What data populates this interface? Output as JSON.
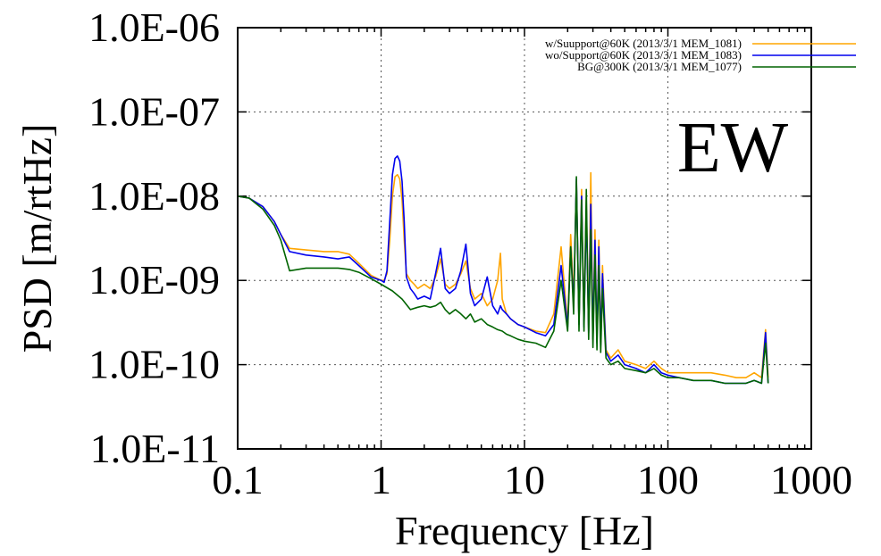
{
  "chart_data": {
    "type": "line",
    "title": "",
    "annotation": "EW",
    "xlabel": "Frequency [Hz]",
    "ylabel": "PSD [m/rtHz]",
    "xscale": "log",
    "yscale": "log",
    "xlim": [
      0.1,
      1000
    ],
    "ylim": [
      1e-11,
      1e-06
    ],
    "grid": true,
    "legend_position": "top-right",
    "x_ticks": [
      0.1,
      1,
      10,
      100,
      1000
    ],
    "x_tick_labels": [
      "0.1",
      "1",
      "10",
      "100",
      "1000"
    ],
    "y_ticks": [
      1e-11,
      1e-10,
      1e-09,
      1e-08,
      1e-07,
      1e-06
    ],
    "y_tick_labels": [
      "1.0E-11",
      "1.0E-10",
      "1.0E-09",
      "1.0E-08",
      "1.0E-07",
      "1.0E-06"
    ],
    "series": [
      {
        "name": "w/Suupport@60K (2013/3/1 MEM_1081)",
        "color": "#ffa500",
        "x": [
          0.1,
          0.12,
          0.15,
          0.18,
          0.2,
          0.23,
          0.3,
          0.4,
          0.5,
          0.6,
          0.7,
          0.85,
          1.0,
          1.05,
          1.1,
          1.15,
          1.2,
          1.25,
          1.3,
          1.35,
          1.4,
          1.45,
          1.5,
          1.6,
          1.7,
          1.8,
          2.0,
          2.2,
          2.4,
          2.6,
          2.8,
          3.0,
          3.3,
          3.6,
          3.9,
          4.2,
          4.5,
          5.0,
          5.5,
          6.0,
          6.5,
          6.8,
          7.0,
          7.5,
          8,
          9,
          10,
          12,
          14,
          16,
          18,
          20,
          21,
          22,
          23,
          24,
          25,
          26,
          27,
          28,
          29,
          30,
          31,
          32,
          33,
          34,
          35,
          37,
          40,
          45,
          50,
          60,
          70,
          80,
          90,
          100,
          120,
          150,
          200,
          250,
          300,
          350,
          400,
          450,
          480,
          500
        ],
        "y": [
          1e-08,
          9.5e-09,
          7.5e-09,
          5e-09,
          3.5e-09,
          2.4e-09,
          2.3e-09,
          2.2e-09,
          2.2e-09,
          2.05e-09,
          1.6e-09,
          1.15e-09,
          1e-09,
          1e-09,
          1.2e-09,
          3e-09,
          1e-08,
          1.7e-08,
          1.8e-08,
          1.6e-08,
          9e-09,
          3e-09,
          1.2e-09,
          1e-09,
          9e-10,
          8e-10,
          9e-10,
          8e-10,
          1.1e-09,
          1.8e-09,
          9e-10,
          8e-10,
          9e-10,
          1.2e-09,
          1.7e-09,
          8e-10,
          6e-10,
          7e-10,
          5e-10,
          6e-10,
          1e-09,
          2.1e-09,
          6e-10,
          4e-10,
          3.5e-10,
          3e-10,
          2.8e-10,
          2.5e-10,
          2.4e-10,
          4e-10,
          2.5e-09,
          3e-10,
          3.5e-09,
          6e-10,
          1.5e-08,
          3e-10,
          1.2e-08,
          3e-10,
          9e-09,
          2.5e-10,
          1.9e-08,
          2e-10,
          4e-09,
          2e-10,
          3e-09,
          1.8e-10,
          1.5e-09,
          1.5e-10,
          1.2e-10,
          1.5e-10,
          1.1e-10,
          1e-10,
          9e-11,
          1.1e-10,
          9e-11,
          8e-11,
          8e-11,
          8e-11,
          8e-11,
          7.5e-11,
          7e-11,
          7e-11,
          8e-11,
          7e-11,
          2.6e-10,
          7e-11
        ]
      },
      {
        "name": "wo/Support@60K (2013/3/1 MEM_1083)",
        "color": "#0000ee",
        "x": [
          0.1,
          0.12,
          0.15,
          0.18,
          0.2,
          0.23,
          0.3,
          0.4,
          0.5,
          0.6,
          0.7,
          0.85,
          1.0,
          1.05,
          1.1,
          1.15,
          1.2,
          1.25,
          1.3,
          1.35,
          1.4,
          1.45,
          1.5,
          1.6,
          1.7,
          1.8,
          2.0,
          2.2,
          2.4,
          2.6,
          2.8,
          3.0,
          3.3,
          3.6,
          3.9,
          4.2,
          4.5,
          5.0,
          5.5,
          6.0,
          6.5,
          6.8,
          7.0,
          7.5,
          8,
          9,
          10,
          12,
          14,
          16,
          18,
          20,
          21,
          22,
          23,
          24,
          25,
          26,
          27,
          28,
          29,
          30,
          31,
          32,
          33,
          34,
          35,
          37,
          40,
          45,
          50,
          60,
          70,
          80,
          90,
          100,
          120,
          150,
          200,
          250,
          300,
          350,
          400,
          450,
          480,
          500
        ],
        "y": [
          1e-08,
          9.5e-09,
          7.5e-09,
          5e-09,
          3.5e-09,
          2.2e-09,
          2e-09,
          1.9e-09,
          1.8e-09,
          1.9e-09,
          1.5e-09,
          1.1e-09,
          1e-09,
          9.5e-10,
          1.3e-09,
          5e-09,
          1.8e-08,
          2.8e-08,
          3e-08,
          2.6e-08,
          1.5e-08,
          5e-09,
          1.1e-09,
          8e-10,
          7e-10,
          6e-10,
          6.5e-10,
          6e-10,
          1.2e-09,
          2.4e-09,
          8e-10,
          7e-10,
          8e-10,
          1.3e-09,
          2.7e-09,
          7e-10,
          5e-10,
          6e-10,
          1.1e-09,
          5e-10,
          4e-10,
          5e-10,
          4.5e-10,
          4e-10,
          3.5e-10,
          3e-10,
          2.8e-10,
          2.4e-10,
          2.2e-10,
          3e-10,
          1.5e-09,
          2.8e-10,
          2.5e-09,
          5e-10,
          1.6e-08,
          3e-10,
          1e-08,
          2.8e-10,
          7e-09,
          2.4e-10,
          8e-09,
          2e-10,
          3e-09,
          1.8e-10,
          2.5e-09,
          1.7e-10,
          1.2e-09,
          1.4e-10,
          1.1e-10,
          1.3e-10,
          1e-10,
          9e-11,
          8e-11,
          1e-10,
          8e-11,
          7.5e-11,
          7e-11,
          6.5e-11,
          6.5e-11,
          6e-11,
          6e-11,
          6e-11,
          6.5e-11,
          6e-11,
          2.4e-10,
          6e-11
        ]
      },
      {
        "name": "BG@300K (2013/3/1 MEM_1077)",
        "color": "#006400",
        "x": [
          0.1,
          0.12,
          0.15,
          0.18,
          0.2,
          0.23,
          0.3,
          0.4,
          0.5,
          0.6,
          0.7,
          0.85,
          1.0,
          1.2,
          1.4,
          1.6,
          1.8,
          2.0,
          2.2,
          2.4,
          2.6,
          2.8,
          3.0,
          3.3,
          3.6,
          3.9,
          4.2,
          4.5,
          5.0,
          5.5,
          6.0,
          6.5,
          7.0,
          7.5,
          8,
          9,
          10,
          12,
          14,
          16,
          18,
          20,
          21,
          22,
          23,
          24,
          25,
          26,
          27,
          28,
          29,
          30,
          31,
          32,
          33,
          34,
          35,
          37,
          40,
          45,
          50,
          60,
          70,
          80,
          90,
          100,
          120,
          150,
          200,
          250,
          300,
          350,
          400,
          450,
          480,
          500
        ],
        "y": [
          1e-08,
          9.5e-09,
          7e-09,
          4.5e-09,
          3e-09,
          1.3e-09,
          1.4e-09,
          1.4e-09,
          1.4e-09,
          1.35e-09,
          1.25e-09,
          1.05e-09,
          9e-10,
          7.5e-10,
          6e-10,
          4.5e-10,
          4.8e-10,
          5e-10,
          4.8e-10,
          5e-10,
          5.5e-10,
          4.5e-10,
          4e-10,
          4.5e-10,
          4e-10,
          3.5e-10,
          4e-10,
          3.2e-10,
          3.5e-10,
          3e-10,
          2.8e-10,
          2.6e-10,
          2.5e-10,
          2.3e-10,
          2.2e-10,
          2e-10,
          1.9e-10,
          1.8e-10,
          1.6e-10,
          2.5e-10,
          1e-09,
          2.5e-10,
          2.5e-09,
          4e-10,
          1.7e-08,
          2.5e-10,
          9e-09,
          2.5e-10,
          1.2e-08,
          2e-10,
          4e-09,
          1.6e-10,
          2e-09,
          1.5e-10,
          1.5e-09,
          1.4e-10,
          8e-10,
          1.2e-10,
          1e-10,
          1.1e-10,
          9e-11,
          8.5e-11,
          8e-11,
          9e-11,
          7.5e-11,
          7e-11,
          7e-11,
          6.5e-11,
          6.5e-11,
          6e-11,
          6e-11,
          6e-11,
          6.5e-11,
          6e-11,
          1.8e-10,
          6e-11
        ]
      }
    ]
  }
}
